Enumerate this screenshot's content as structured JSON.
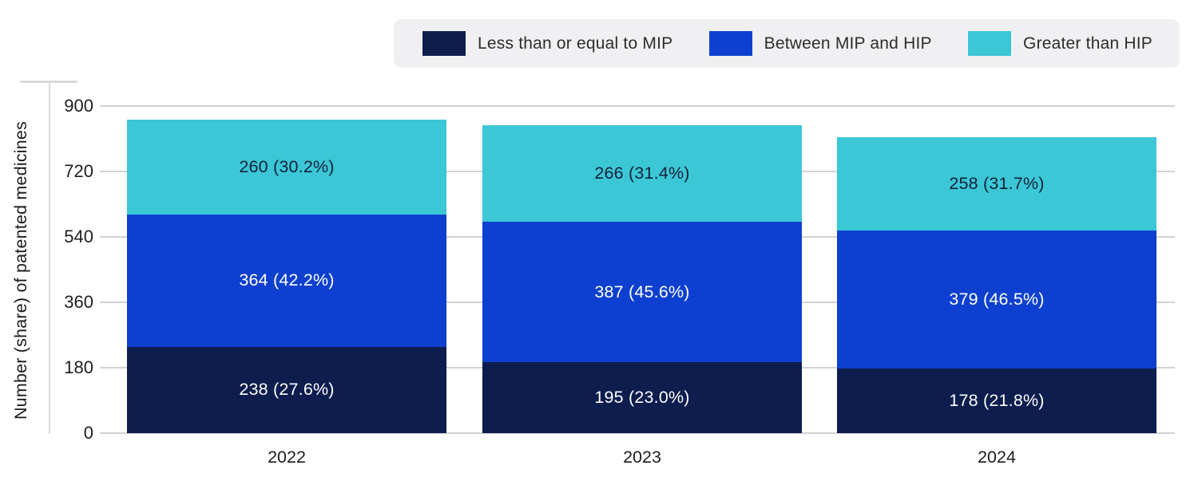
{
  "legend": {
    "items": [
      {
        "label": "Less than or equal to MIP",
        "color": "#0d1d4e"
      },
      {
        "label": "Between MIP and HIP",
        "color": "#0d40d0"
      },
      {
        "label": "Greater than HIP",
        "color": "#3bc7d6"
      }
    ]
  },
  "chart_data": {
    "type": "bar",
    "stacked": true,
    "title": "",
    "xlabel": "",
    "ylabel": "Number (share) of patented medicines",
    "categories": [
      "2022",
      "2023",
      "2024"
    ],
    "series": [
      {
        "name": "Less than or equal to MIP",
        "color": "#0d1d4e",
        "label_color": "#ffffff",
        "values": [
          238,
          195,
          178
        ],
        "labels": [
          "238 (27.6%)",
          "195 (23.0%)",
          "178 (21.8%)"
        ]
      },
      {
        "name": "Between MIP and HIP",
        "color": "#0d40d0",
        "label_color": "#ffffff",
        "values": [
          364,
          387,
          379
        ],
        "labels": [
          "364 (42.2%)",
          "387 (45.6%)",
          "379 (46.5%)"
        ]
      },
      {
        "name": "Greater than HIP",
        "color": "#3bc7d6",
        "label_color": "#15203a",
        "values": [
          260,
          266,
          258
        ],
        "labels": [
          "260 (30.2%)",
          "266 (31.4%)",
          "258 (31.7%)"
        ]
      }
    ],
    "totals": [
      862,
      848,
      815
    ],
    "yticks": [
      0,
      180,
      360,
      540,
      720,
      900
    ],
    "ylim": [
      0,
      900
    ],
    "grid": true,
    "legend_position": "top-right",
    "colors": {
      "gridline": "#d2d2d6",
      "axis": "#d9d9db",
      "legend_background": "#f0f0f2",
      "background": "#ffffff"
    }
  }
}
